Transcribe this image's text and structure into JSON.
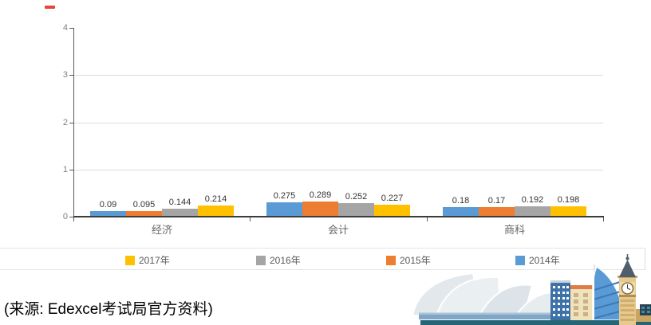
{
  "chart_data": {
    "type": "bar",
    "title": "",
    "categories": [
      "经济",
      "会计",
      "商科"
    ],
    "series": [
      {
        "name": "2014年",
        "color": "#5B9BD5",
        "values": [
          0.09,
          0.275,
          0.18
        ]
      },
      {
        "name": "2015年",
        "color": "#ED7D31",
        "values": [
          0.095,
          0.289,
          0.17
        ]
      },
      {
        "name": "2016年",
        "color": "#A5A5A5",
        "values": [
          0.144,
          0.252,
          0.192
        ]
      },
      {
        "name": "2017年",
        "color": "#FFC000",
        "values": [
          0.214,
          0.227,
          0.198
        ]
      }
    ],
    "value_labels": [
      [
        "0.09",
        "0.275",
        "0.18"
      ],
      [
        "0.095",
        "0.289",
        "0.17"
      ],
      [
        "0.144",
        "0.252",
        "0.192"
      ],
      [
        "0.214",
        "0.227",
        "0.198"
      ]
    ],
    "ylim": [
      0,
      4
    ],
    "yticks": [
      "0",
      "1",
      "2",
      "3",
      "4"
    ],
    "grid": true,
    "legend_position": "bottom",
    "legend": [
      {
        "label": "2017年",
        "color": "#FFC000"
      },
      {
        "label": "2016年",
        "color": "#A5A5A5"
      },
      {
        "label": "2015年",
        "color": "#ED7D31"
      },
      {
        "label": "2014年",
        "color": "#5B9BD5"
      }
    ]
  },
  "source_note": "(来源: Edexcel考试局官方资料)",
  "decorations": {
    "red_dash_color": "#e8443a",
    "illustration_items": [
      "sydney-opera-house",
      "city-buildings",
      "burj-al-arab",
      "big-ben",
      "ground-bar"
    ]
  }
}
